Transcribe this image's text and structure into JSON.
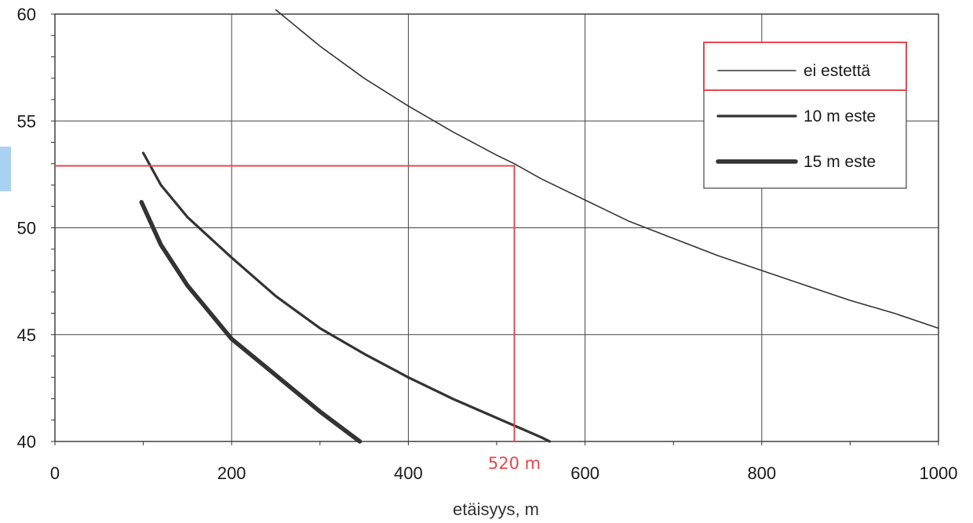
{
  "chart_data": {
    "type": "line",
    "title": "",
    "xlabel": "etäisyys, m",
    "ylabel": "",
    "xlim": [
      0,
      1000
    ],
    "ylim": [
      40,
      60
    ],
    "x_ticks": [
      0,
      200,
      400,
      600,
      800,
      1000
    ],
    "y_ticks": [
      40,
      45,
      50,
      55,
      60
    ],
    "grid": true,
    "legend_position": "top-right",
    "series": [
      {
        "name": "ei estettä",
        "line_weight": "thin",
        "points": [
          [
            250,
            60.2
          ],
          [
            300,
            58.5
          ],
          [
            350,
            57.0
          ],
          [
            400,
            55.7
          ],
          [
            450,
            54.5
          ],
          [
            500,
            53.4
          ],
          [
            520,
            53.0
          ],
          [
            550,
            52.3
          ],
          [
            600,
            51.3
          ],
          [
            650,
            50.3
          ],
          [
            700,
            49.5
          ],
          [
            750,
            48.7
          ],
          [
            800,
            48.0
          ],
          [
            850,
            47.3
          ],
          [
            900,
            46.6
          ],
          [
            950,
            46.0
          ],
          [
            1000,
            45.3
          ]
        ]
      },
      {
        "name": "10 m este",
        "line_weight": "medium",
        "points": [
          [
            100,
            53.5
          ],
          [
            120,
            52.0
          ],
          [
            150,
            50.5
          ],
          [
            200,
            48.6
          ],
          [
            250,
            46.8
          ],
          [
            300,
            45.3
          ],
          [
            350,
            44.1
          ],
          [
            400,
            43.0
          ],
          [
            450,
            42.0
          ],
          [
            500,
            41.1
          ],
          [
            550,
            40.2
          ],
          [
            560,
            40.0
          ]
        ]
      },
      {
        "name": "15 m este",
        "line_weight": "thick",
        "points": [
          [
            98,
            51.2
          ],
          [
            120,
            49.2
          ],
          [
            150,
            47.3
          ],
          [
            200,
            44.8
          ],
          [
            250,
            43.1
          ],
          [
            300,
            41.4
          ],
          [
            345,
            40.0
          ]
        ]
      }
    ],
    "annotation": {
      "label": "520 m",
      "x": 520,
      "y": 52.9,
      "color": "#e8474f"
    }
  }
}
